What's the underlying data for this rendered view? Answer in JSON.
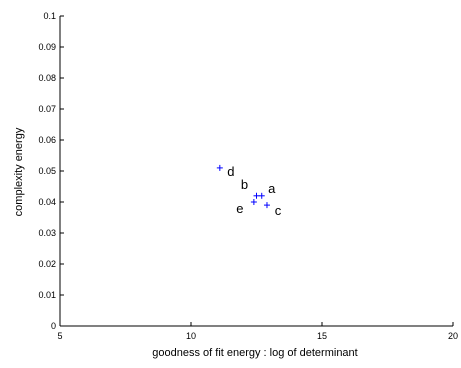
{
  "chart_data": {
    "type": "scatter",
    "title": "",
    "xlabel": "goodness of fit energy : log of determinant",
    "ylabel": "complexity energy",
    "xlim": [
      5,
      20
    ],
    "ylim": [
      0,
      0.1
    ],
    "xticks": [
      5,
      10,
      15,
      20
    ],
    "yticks": [
      0,
      0.01,
      0.02,
      0.03,
      0.04,
      0.05,
      0.06,
      0.07,
      0.08,
      0.09,
      0.1
    ],
    "xtick_labels": [
      "5",
      "10",
      "15",
      "20"
    ],
    "ytick_labels": [
      "0",
      "0.01",
      "0.02",
      "0.03",
      "0.04",
      "0.05",
      "0.06",
      "0.07",
      "0.08",
      "0.09",
      "0.1"
    ],
    "grid": false,
    "marker": "plus",
    "marker_color": "#0000ff",
    "points": [
      {
        "label": "a",
        "x": 12.7,
        "y": 0.042
      },
      {
        "label": "b",
        "x": 12.5,
        "y": 0.042
      },
      {
        "label": "c",
        "x": 12.9,
        "y": 0.039
      },
      {
        "label": "d",
        "x": 11.1,
        "y": 0.051
      },
      {
        "label": "e",
        "x": 12.4,
        "y": 0.04
      }
    ]
  }
}
